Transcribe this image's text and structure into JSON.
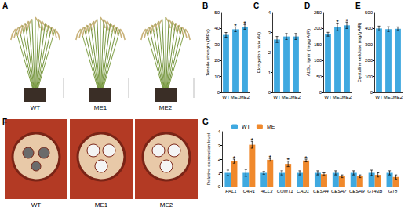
{
  "chart_data": [
    {
      "panel": "B",
      "type": "bar",
      "y_label": "Tensile strength (MPa)",
      "categories": [
        "WT",
        "ME1",
        "ME2"
      ],
      "values": [
        36,
        39.5,
        41
      ],
      "errors": [
        1.5,
        1.5,
        1.5
      ],
      "significance": [
        null,
        "*",
        "*"
      ],
      "color": "#3fa9e0",
      "ylim": [
        0,
        50
      ],
      "yticks": [
        0,
        10,
        20,
        30,
        40,
        50
      ],
      "grid": false
    },
    {
      "panel": "C",
      "type": "bar",
      "y_label": "Elongation ratio (%)",
      "categories": [
        "WT",
        "ME1",
        "ME2"
      ],
      "values": [
        2.65,
        2.8,
        2.8
      ],
      "errors": [
        0.15,
        0.15,
        0.15
      ],
      "significance": [
        null,
        null,
        null
      ],
      "color": "#3fa9e0",
      "ylim": [
        0,
        4
      ],
      "yticks": [
        0,
        1,
        2,
        3,
        4
      ],
      "grid": false
    },
    {
      "panel": "D",
      "type": "bar",
      "y_label": "AbSL lignin (mg/g AIR)",
      "categories": [
        "WT",
        "ME1",
        "ME2"
      ],
      "values": [
        182,
        205,
        210
      ],
      "errors": [
        6,
        12,
        10
      ],
      "significance": [
        null,
        "*",
        "*"
      ],
      "color": "#3fa9e0",
      "ylim": [
        0,
        250
      ],
      "yticks": [
        0,
        50,
        100,
        150,
        200,
        250
      ],
      "grid": false
    },
    {
      "panel": "E",
      "type": "bar",
      "y_label": "Crystalline cellulose (mg/g AIR)",
      "categories": [
        "WT",
        "ME1",
        "ME2"
      ],
      "values": [
        400,
        396,
        398
      ],
      "errors": [
        15,
        15,
        12
      ],
      "significance": [
        null,
        null,
        null
      ],
      "color": "#3fa9e0",
      "ylim": [
        0,
        500
      ],
      "yticks": [
        0,
        100,
        200,
        300,
        400,
        500
      ],
      "grid": false
    },
    {
      "panel": "G",
      "type": "bar",
      "y_label": "Relative expression level",
      "categories": [
        "PAL1",
        "C4H1",
        "4CL3",
        "COMT1",
        "CAD1",
        "CESA4",
        "CESA7",
        "CESA9",
        "GT43B",
        "GT8"
      ],
      "series": [
        {
          "name": "WT",
          "color": "#3fa9e0",
          "values": [
            1,
            1,
            1,
            1,
            1,
            1,
            1,
            1,
            1,
            1
          ],
          "errors": [
            0.2,
            0.25,
            0.1,
            0.15,
            0.15,
            0.15,
            0.15,
            0.15,
            0.2,
            0.15
          ],
          "significance": [
            null,
            null,
            null,
            null,
            null,
            null,
            null,
            null,
            null,
            null
          ]
        },
        {
          "name": "ME",
          "color": "#f0892c",
          "values": [
            1.85,
            3.05,
            1.95,
            1.65,
            1.9,
            0.9,
            0.75,
            0.75,
            0.85,
            0.7
          ],
          "errors": [
            0.15,
            0.25,
            0.1,
            0.2,
            0.1,
            0.1,
            0.1,
            0.1,
            0.15,
            0.15
          ],
          "significance": [
            "*",
            "*",
            "*",
            "*",
            "*",
            null,
            null,
            null,
            null,
            null
          ]
        }
      ],
      "legend": "top-left",
      "ylim": [
        0,
        4
      ],
      "yticks": [
        0,
        1,
        2,
        3,
        4
      ],
      "grid": false
    }
  ],
  "images": [
    {
      "panel": "A",
      "labels": [
        "WT",
        "ME1",
        "ME2"
      ]
    },
    {
      "panel": "F",
      "labels": [
        "WT",
        "ME1",
        "ME2"
      ]
    }
  ]
}
